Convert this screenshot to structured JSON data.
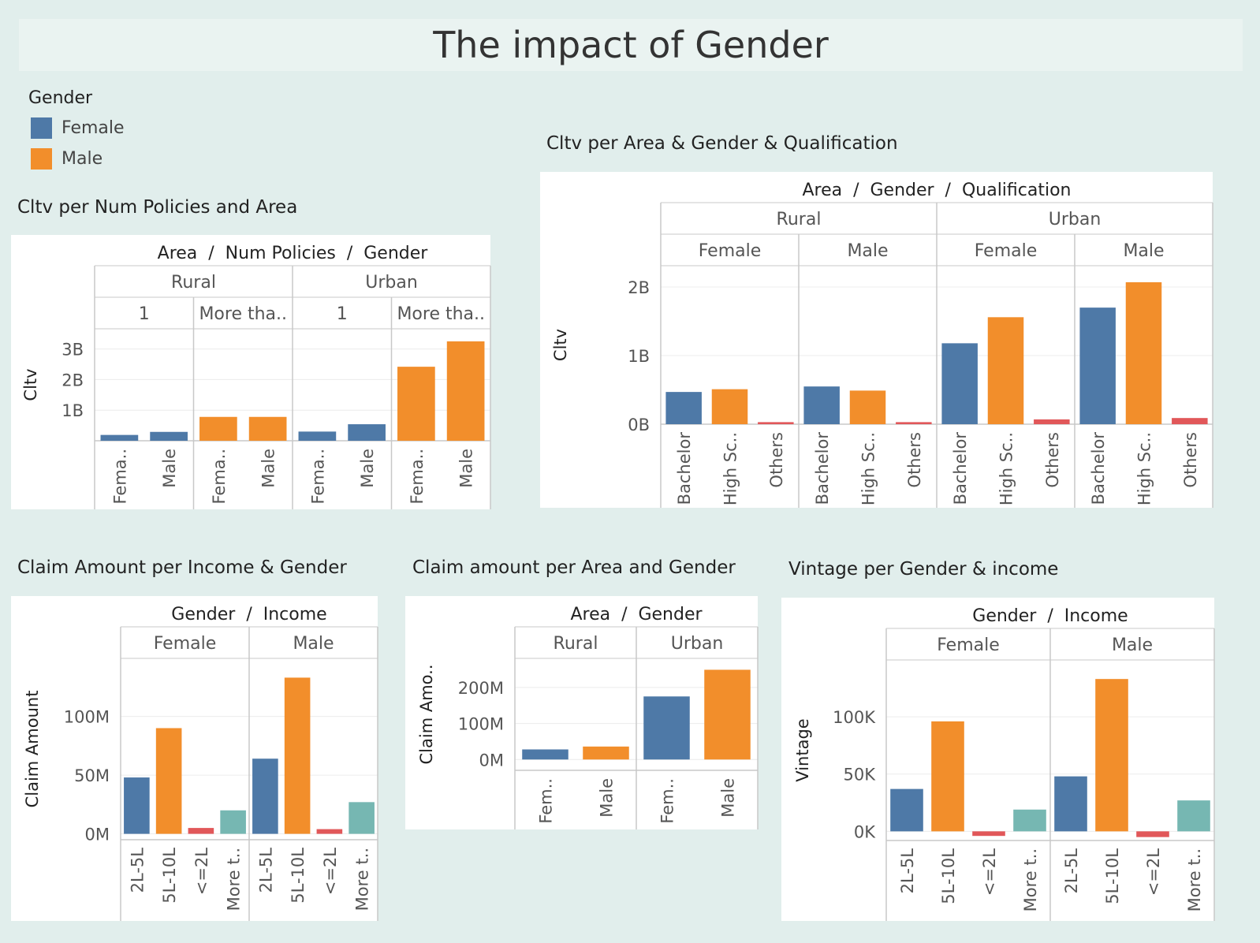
{
  "dashboard": {
    "title": "The impact of Gender"
  },
  "legend": {
    "title": "Gender",
    "items": [
      {
        "label": "Female",
        "color": "#4e79a7"
      },
      {
        "label": "Male",
        "color": "#f28e2b"
      }
    ]
  },
  "colors": {
    "female": "#4e79a7",
    "male": "#f28e2b",
    "others_red": "#e15759",
    "more_teal": "#76b7b2"
  },
  "chart_data": [
    {
      "id": "chart1",
      "type": "bar",
      "title": "Cltv per Num Policies and Area",
      "header": "Area  /  Num Policies  /  Gender",
      "ylabel": "Cltv",
      "ylim": [
        0,
        3300000000
      ],
      "yticks": [
        {
          "value": 1000000000,
          "label": "1B"
        },
        {
          "value": 2000000000,
          "label": "2B"
        },
        {
          "value": 3000000000,
          "label": "3B"
        }
      ],
      "groups": [
        {
          "label": "Rural",
          "subgroups": [
            {
              "label": "1",
              "bars": [
                {
                  "label": "Fema..",
                  "value": 190000000,
                  "color": "#4e79a7"
                },
                {
                  "label": "Male",
                  "value": 290000000,
                  "color": "#4e79a7"
                }
              ]
            },
            {
              "label": "More tha..",
              "bars": [
                {
                  "label": "Fema..",
                  "value": 780000000,
                  "color": "#f28e2b"
                },
                {
                  "label": "Male",
                  "value": 780000000,
                  "color": "#f28e2b"
                }
              ]
            }
          ]
        },
        {
          "label": "Urban",
          "subgroups": [
            {
              "label": "1",
              "bars": [
                {
                  "label": "Fema..",
                  "value": 300000000,
                  "color": "#4e79a7"
                },
                {
                  "label": "Male",
                  "value": 540000000,
                  "color": "#4e79a7"
                }
              ]
            },
            {
              "label": "More tha..",
              "bars": [
                {
                  "label": "Fema..",
                  "value": 2420000000,
                  "color": "#f28e2b"
                },
                {
                  "label": "Male",
                  "value": 3250000000,
                  "color": "#f28e2b"
                }
              ]
            }
          ]
        }
      ]
    },
    {
      "id": "chart2",
      "type": "bar",
      "title": "Cltv per Area & Gender & Qualification",
      "header": "Area  /  Gender  /  Qualification",
      "ylabel": "Cltv",
      "ylim": [
        0,
        2150000000
      ],
      "yticks": [
        {
          "value": 0,
          "label": "0B"
        },
        {
          "value": 1000000000,
          "label": "1B"
        },
        {
          "value": 2000000000,
          "label": "2B"
        }
      ],
      "groups": [
        {
          "label": "Rural",
          "subgroups": [
            {
              "label": "Female",
              "bars": [
                {
                  "label": "Bachelor",
                  "value": 470000000,
                  "color": "#4e79a7"
                },
                {
                  "label": "High Sc..",
                  "value": 510000000,
                  "color": "#f28e2b"
                },
                {
                  "label": "Others",
                  "value": 30000000,
                  "color": "#e15759"
                }
              ]
            },
            {
              "label": "Male",
              "bars": [
                {
                  "label": "Bachelor",
                  "value": 550000000,
                  "color": "#4e79a7"
                },
                {
                  "label": "High Sc..",
                  "value": 490000000,
                  "color": "#f28e2b"
                },
                {
                  "label": "Others",
                  "value": 30000000,
                  "color": "#e15759"
                }
              ]
            }
          ]
        },
        {
          "label": "Urban",
          "subgroups": [
            {
              "label": "Female",
              "bars": [
                {
                  "label": "Bachelor",
                  "value": 1180000000,
                  "color": "#4e79a7"
                },
                {
                  "label": "High Sc..",
                  "value": 1560000000,
                  "color": "#f28e2b"
                },
                {
                  "label": "Others",
                  "value": 70000000,
                  "color": "#e15759"
                }
              ]
            },
            {
              "label": "Male",
              "bars": [
                {
                  "label": "Bachelor",
                  "value": 1700000000,
                  "color": "#4e79a7"
                },
                {
                  "label": "High Sc..",
                  "value": 2070000000,
                  "color": "#f28e2b"
                },
                {
                  "label": "Others",
                  "value": 90000000,
                  "color": "#e15759"
                }
              ]
            }
          ]
        }
      ]
    },
    {
      "id": "chart3",
      "type": "bar",
      "title": "Claim Amount per Income & Gender",
      "header": "Gender  /  Income",
      "ylabel": "Claim Amount",
      "ylim": [
        -5000000,
        140000000
      ],
      "yticks": [
        {
          "value": 0,
          "label": "0M"
        },
        {
          "value": 50000000,
          "label": "50M"
        },
        {
          "value": 100000000,
          "label": "100M"
        }
      ],
      "groups": [
        {
          "label": "Female",
          "bars": [
            {
              "label": "2L-5L",
              "value": 48000000,
              "color": "#4e79a7"
            },
            {
              "label": "5L-10L",
              "value": 90000000,
              "color": "#f28e2b"
            },
            {
              "label": "<=2L",
              "value": 5000000,
              "color": "#e15759"
            },
            {
              "label": "More t..",
              "value": 20000000,
              "color": "#76b7b2"
            }
          ]
        },
        {
          "label": "Male",
          "bars": [
            {
              "label": "2L-5L",
              "value": 64000000,
              "color": "#4e79a7"
            },
            {
              "label": "5L-10L",
              "value": 133000000,
              "color": "#f28e2b"
            },
            {
              "label": "<=2L",
              "value": 4000000,
              "color": "#e15759"
            },
            {
              "label": "More t..",
              "value": 27000000,
              "color": "#76b7b2"
            }
          ]
        }
      ]
    },
    {
      "id": "chart4",
      "type": "bar",
      "title": "Claim amount per Area and Gender",
      "header": "Area  /  Gender",
      "ylabel": "Claim Amo..",
      "ylim": [
        -30000000,
        250000000
      ],
      "yticks": [
        {
          "value": 0,
          "label": "0M"
        },
        {
          "value": 100000000,
          "label": "100M"
        },
        {
          "value": 200000000,
          "label": "200M"
        }
      ],
      "groups": [
        {
          "label": "Rural",
          "bars": [
            {
              "label": "Fem..",
              "value": 28000000,
              "color": "#4e79a7"
            },
            {
              "label": "Male",
              "value": 36000000,
              "color": "#f28e2b"
            }
          ]
        },
        {
          "label": "Urban",
          "bars": [
            {
              "label": "Fem..",
              "value": 175000000,
              "color": "#4e79a7"
            },
            {
              "label": "Male",
              "value": 249000000,
              "color": "#f28e2b"
            }
          ]
        }
      ]
    },
    {
      "id": "chart5",
      "type": "bar",
      "title": "Vintage per Gender & income",
      "header": "Gender  /  Income",
      "ylabel": "Vintage",
      "ylim": [
        -8000,
        140000
      ],
      "yticks": [
        {
          "value": 0,
          "label": "0K"
        },
        {
          "value": 50000,
          "label": "50K"
        },
        {
          "value": 100000,
          "label": "100K"
        }
      ],
      "groups": [
        {
          "label": "Female",
          "bars": [
            {
              "label": "2L-5L",
              "value": 37000,
              "color": "#4e79a7"
            },
            {
              "label": "5L-10L",
              "value": 96000,
              "color": "#f28e2b"
            },
            {
              "label": "<=2L",
              "value": -4000,
              "color": "#e15759"
            },
            {
              "label": "More t..",
              "value": 19000,
              "color": "#76b7b2"
            }
          ]
        },
        {
          "label": "Male",
          "bars": [
            {
              "label": "2L-5L",
              "value": 48000,
              "color": "#4e79a7"
            },
            {
              "label": "5L-10L",
              "value": 133000,
              "color": "#f28e2b"
            },
            {
              "label": "<=2L",
              "value": -5000,
              "color": "#e15759"
            },
            {
              "label": "More t..",
              "value": 27000,
              "color": "#76b7b2"
            }
          ]
        }
      ]
    }
  ]
}
